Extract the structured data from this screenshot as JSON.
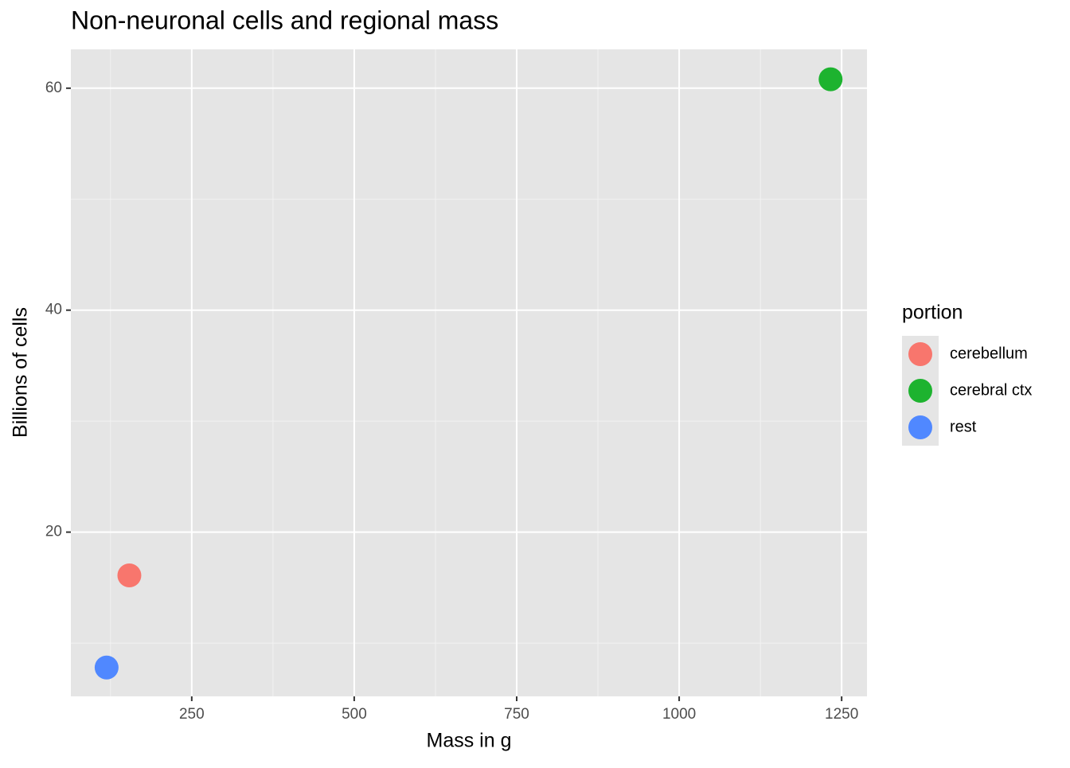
{
  "chart_data": {
    "type": "scatter",
    "title": "Non-neuronal cells and regional mass",
    "x_label": "Mass in g",
    "y_label": "Billions of cells",
    "legend_title": "portion",
    "series": [
      {
        "name": "cerebellum",
        "color": "#F8766D",
        "x": [
          154
        ],
        "values": [
          16.1
        ]
      },
      {
        "name": "cerebral ctx",
        "color": "#1DB32F",
        "x": [
          1233
        ],
        "values": [
          60.8
        ]
      },
      {
        "name": "rest",
        "color": "#5088FF",
        "x": [
          119
        ],
        "values": [
          7.8
        ]
      }
    ],
    "xlim": [
      64,
      1289
    ],
    "xticks": [
      250,
      500,
      750,
      1000,
      1250
    ],
    "ylim": [
      5.2,
      63.5
    ],
    "yticks": [
      20,
      40,
      60
    ],
    "grid": true,
    "minor_grid": true,
    "legend": "right"
  }
}
